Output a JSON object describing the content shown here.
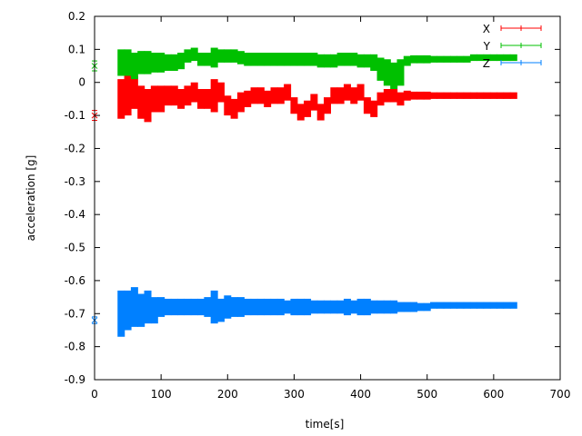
{
  "chart_data": {
    "type": "scatter",
    "style": "errorbars",
    "xlabel": "time[s]",
    "ylabel": "acceleration [g]",
    "xlim": [
      0,
      700
    ],
    "ylim": [
      -0.9,
      0.2
    ],
    "xticks": [
      "0",
      "100",
      "200",
      "300",
      "400",
      "500",
      "600",
      "700"
    ],
    "yticks": [
      "0.2",
      "0.1",
      "0",
      "-0.1",
      "-0.2",
      "-0.3",
      "-0.4",
      "-0.5",
      "-0.6",
      "-0.7",
      "-0.8",
      "-0.9"
    ],
    "grid": false,
    "legend_position": "top-right",
    "x": [
      0,
      40,
      50,
      60,
      70,
      80,
      90,
      100,
      110,
      120,
      130,
      140,
      150,
      160,
      170,
      180,
      190,
      200,
      210,
      220,
      230,
      240,
      250,
      260,
      270,
      280,
      290,
      300,
      310,
      320,
      330,
      340,
      350,
      360,
      370,
      380,
      390,
      400,
      410,
      420,
      430,
      440,
      450,
      460,
      470,
      480,
      490,
      500,
      510,
      520,
      530,
      540,
      550,
      560,
      570,
      580,
      590,
      600,
      610,
      620,
      630
    ],
    "series": [
      {
        "name": "X",
        "color": "#ff0000",
        "values": [
          -0.1,
          -0.05,
          -0.04,
          -0.03,
          -0.06,
          -0.07,
          -0.05,
          -0.05,
          -0.04,
          -0.04,
          -0.05,
          -0.04,
          -0.03,
          -0.05,
          -0.05,
          -0.04,
          -0.03,
          -0.07,
          -0.08,
          -0.06,
          -0.05,
          -0.04,
          -0.04,
          -0.05,
          -0.04,
          -0.04,
          -0.03,
          -0.07,
          -0.09,
          -0.08,
          -0.06,
          -0.09,
          -0.07,
          -0.04,
          -0.04,
          -0.03,
          -0.04,
          -0.03,
          -0.07,
          -0.08,
          -0.05,
          -0.04,
          -0.04,
          -0.05,
          -0.04,
          -0.04,
          -0.04,
          -0.04,
          -0.04,
          -0.04,
          -0.04,
          -0.04,
          -0.04,
          -0.04,
          -0.04,
          -0.04,
          -0.04,
          -0.04,
          -0.04,
          -0.04,
          -0.04
        ],
        "errors": [
          0.015,
          0.06,
          0.06,
          0.05,
          0.05,
          0.05,
          0.04,
          0.04,
          0.03,
          0.03,
          0.03,
          0.03,
          0.03,
          0.03,
          0.03,
          0.05,
          0.03,
          0.03,
          0.03,
          0.03,
          0.025,
          0.025,
          0.025,
          0.025,
          0.025,
          0.025,
          0.025,
          0.025,
          0.025,
          0.025,
          0.025,
          0.025,
          0.025,
          0.025,
          0.025,
          0.025,
          0.025,
          0.025,
          0.025,
          0.025,
          0.02,
          0.02,
          0.02,
          0.02,
          0.015,
          0.012,
          0.012,
          0.012,
          0.01,
          0.01,
          0.01,
          0.01,
          0.01,
          0.01,
          0.01,
          0.01,
          0.01,
          0.01,
          0.01,
          0.01,
          0.01
        ]
      },
      {
        "name": "Y",
        "color": "#00c000",
        "values": [
          0.05,
          0.06,
          0.06,
          0.05,
          0.06,
          0.06,
          0.06,
          0.06,
          0.06,
          0.06,
          0.065,
          0.08,
          0.085,
          0.07,
          0.07,
          0.075,
          0.08,
          0.08,
          0.08,
          0.075,
          0.07,
          0.07,
          0.07,
          0.07,
          0.07,
          0.07,
          0.07,
          0.07,
          0.07,
          0.07,
          0.07,
          0.065,
          0.065,
          0.065,
          0.07,
          0.07,
          0.07,
          0.065,
          0.065,
          0.06,
          0.04,
          0.03,
          0.02,
          0.03,
          0.065,
          0.07,
          0.07,
          0.07,
          0.07,
          0.07,
          0.07,
          0.07,
          0.07,
          0.07,
          0.075,
          0.075,
          0.075,
          0.075,
          0.075,
          0.075,
          0.075
        ],
        "errors": [
          0.015,
          0.04,
          0.04,
          0.04,
          0.035,
          0.035,
          0.03,
          0.03,
          0.025,
          0.025,
          0.025,
          0.02,
          0.02,
          0.02,
          0.02,
          0.03,
          0.02,
          0.02,
          0.02,
          0.02,
          0.02,
          0.02,
          0.02,
          0.02,
          0.02,
          0.02,
          0.02,
          0.02,
          0.02,
          0.02,
          0.02,
          0.02,
          0.02,
          0.02,
          0.02,
          0.02,
          0.02,
          0.02,
          0.02,
          0.025,
          0.035,
          0.04,
          0.04,
          0.04,
          0.015,
          0.012,
          0.012,
          0.012,
          0.01,
          0.01,
          0.01,
          0.01,
          0.01,
          0.01,
          0.01,
          0.01,
          0.01,
          0.01,
          0.01,
          0.01,
          0.01
        ]
      },
      {
        "name": "Z",
        "color": "#0080ff",
        "values": [
          -0.72,
          -0.7,
          -0.69,
          -0.68,
          -0.69,
          -0.68,
          -0.69,
          -0.68,
          -0.68,
          -0.68,
          -0.68,
          -0.68,
          -0.68,
          -0.68,
          -0.68,
          -0.68,
          -0.69,
          -0.68,
          -0.68,
          -0.68,
          -0.68,
          -0.68,
          -0.68,
          -0.68,
          -0.68,
          -0.68,
          -0.68,
          -0.68,
          -0.68,
          -0.68,
          -0.68,
          -0.68,
          -0.68,
          -0.68,
          -0.68,
          -0.68,
          -0.68,
          -0.68,
          -0.68,
          -0.68,
          -0.68,
          -0.68,
          -0.68,
          -0.68,
          -0.68,
          -0.68,
          -0.68,
          -0.68,
          -0.675,
          -0.675,
          -0.675,
          -0.675,
          -0.675,
          -0.675,
          -0.675,
          -0.675,
          -0.675,
          -0.675,
          -0.675,
          -0.675,
          -0.675
        ],
        "errors": [
          0.01,
          0.07,
          0.06,
          0.06,
          0.05,
          0.05,
          0.04,
          0.03,
          0.025,
          0.025,
          0.025,
          0.025,
          0.025,
          0.025,
          0.03,
          0.05,
          0.035,
          0.035,
          0.03,
          0.03,
          0.025,
          0.025,
          0.025,
          0.025,
          0.025,
          0.025,
          0.02,
          0.025,
          0.025,
          0.025,
          0.02,
          0.02,
          0.02,
          0.02,
          0.02,
          0.025,
          0.02,
          0.025,
          0.025,
          0.02,
          0.02,
          0.02,
          0.02,
          0.015,
          0.015,
          0.015,
          0.012,
          0.012,
          0.01,
          0.01,
          0.01,
          0.01,
          0.01,
          0.01,
          0.01,
          0.01,
          0.01,
          0.01,
          0.01,
          0.01,
          0.01
        ]
      }
    ]
  }
}
